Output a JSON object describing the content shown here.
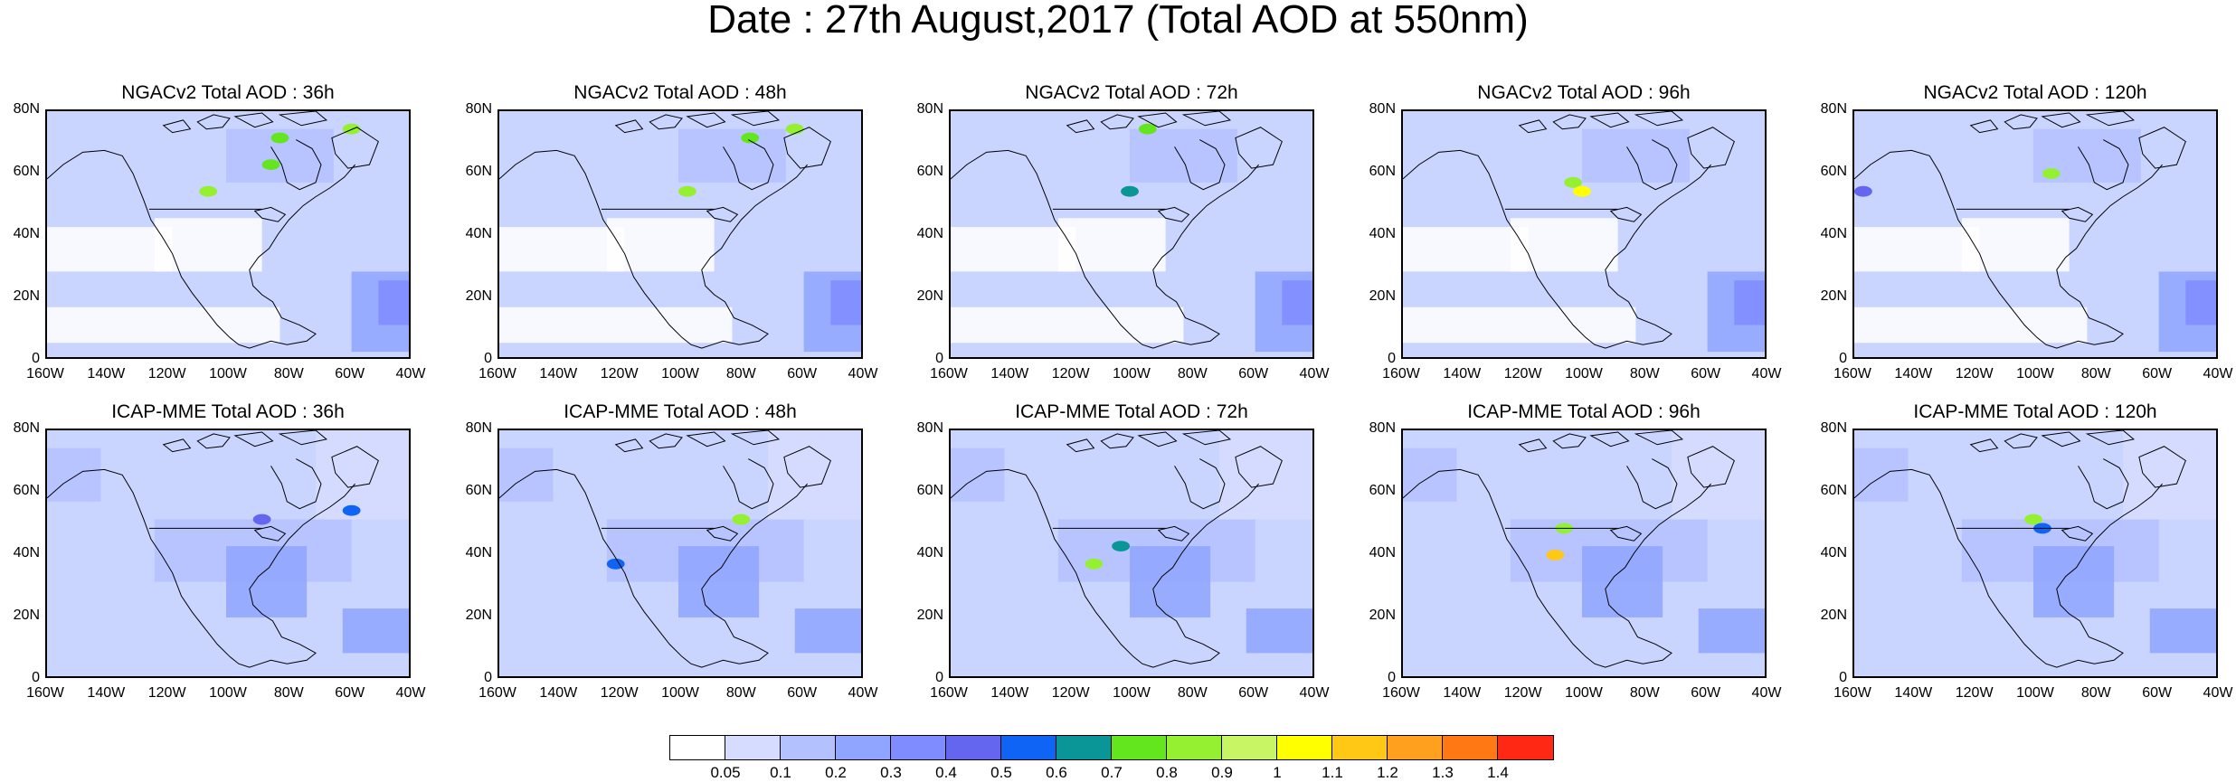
{
  "title": "Date : 27th August,2017 (Total AOD at 550nm)",
  "panels": [
    {
      "title": "NGACv2 Total AOD : 36h"
    },
    {
      "title": "NGACv2 Total AOD : 48h"
    },
    {
      "title": "NGACv2 Total AOD : 72h"
    },
    {
      "title": "NGACv2 Total AOD : 96h"
    },
    {
      "title": "NGACv2 Total AOD : 120h"
    },
    {
      "title": "ICAP-MME Total AOD : 36h"
    },
    {
      "title": "ICAP-MME Total AOD : 48h"
    },
    {
      "title": "ICAP-MME Total AOD : 72h"
    },
    {
      "title": "ICAP-MME Total AOD : 96h"
    },
    {
      "title": "ICAP-MME Total AOD : 120h"
    }
  ],
  "y_ticks": [
    "80N",
    "60N",
    "40N",
    "20N",
    "0"
  ],
  "x_ticks": [
    "160W",
    "140W",
    "120W",
    "100W",
    "80W",
    "60W",
    "40W"
  ],
  "colorbar": {
    "colors": [
      "#ffffff",
      "#d6dcff",
      "#b4c1ff",
      "#8fa5ff",
      "#7e8cff",
      "#6466f0",
      "#0f64f5",
      "#0a9696",
      "#64e61e",
      "#96f032",
      "#c8f564",
      "#ffff00",
      "#ffc814",
      "#ffa01e",
      "#ff7814",
      "#ff2814"
    ],
    "labels": [
      "0.05",
      "0.1",
      "0.2",
      "0.3",
      "0.4",
      "0.5",
      "0.6",
      "0.7",
      "0.8",
      "0.9",
      "1",
      "1.1",
      "1.2",
      "1.3",
      "1.4"
    ]
  }
}
